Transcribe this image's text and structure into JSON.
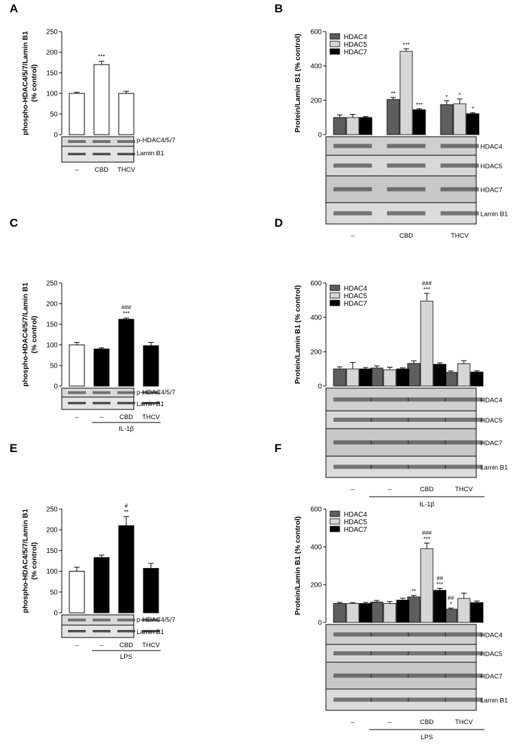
{
  "colors": {
    "white": "#ffffff",
    "black": "#000000",
    "hdac4": "#5e5e5e",
    "hdac5": "#d6d6d6",
    "hdac7": "#000000"
  },
  "chart_data": [
    {
      "panel": "A",
      "type": "bar",
      "ylabel": "phospho-HDAC4/5/7/Lamin B1\n(% control)",
      "ylim": [
        0,
        250
      ],
      "yticks": [
        0,
        50,
        100,
        150,
        200,
        250
      ],
      "categories": [
        "–",
        "CBD",
        "THCV"
      ],
      "values": [
        100,
        170,
        100
      ],
      "errors": [
        3,
        8,
        5
      ],
      "bar_colors": [
        "#ffffff",
        "#ffffff",
        "#ffffff"
      ],
      "annotations": [
        "",
        "***",
        ""
      ],
      "blot_labels": [
        "p-HDAC4/5/7",
        "Lamin B1"
      ],
      "treatment": ""
    },
    {
      "panel": "B",
      "type": "bar",
      "ylabel": "Protein/Lamin B1 (% control)",
      "ylim": [
        0,
        600
      ],
      "yticks": [
        0,
        200,
        400,
        600
      ],
      "categories": [
        "–",
        "CBD",
        "THCV"
      ],
      "legend": [
        "HDAC4",
        "HDAC5",
        "HDAC7"
      ],
      "series": [
        {
          "name": "HDAC4",
          "values": [
            100,
            205,
            175
          ],
          "errors": [
            15,
            12,
            22
          ],
          "annotations": [
            "",
            "**",
            "*"
          ]
        },
        {
          "name": "HDAC5",
          "values": [
            100,
            485,
            180
          ],
          "errors": [
            18,
            15,
            28
          ],
          "annotations": [
            "",
            "***",
            "*"
          ]
        },
        {
          "name": "HDAC7",
          "values": [
            100,
            145,
            122
          ],
          "errors": [
            5,
            6,
            6
          ],
          "annotations": [
            "",
            "***",
            "*"
          ]
        }
      ],
      "blot_labels": [
        "HDAC4",
        "HDAC5",
        "HDAC7",
        "Lamin B1"
      ],
      "treatment": ""
    },
    {
      "panel": "C",
      "type": "bar",
      "ylabel": "phospho-HDAC4/5/7/Lamin B1\n(% control)",
      "ylim": [
        0,
        250
      ],
      "yticks": [
        0,
        50,
        100,
        150,
        200,
        250
      ],
      "categories": [
        "–",
        "–",
        "CBD",
        "THCV"
      ],
      "values": [
        100,
        90,
        162,
        98
      ],
      "errors": [
        6,
        3,
        3,
        8
      ],
      "bar_colors": [
        "#ffffff",
        "#000000",
        "#000000",
        "#000000"
      ],
      "annotations": [
        "",
        "",
        "###\n***",
        ""
      ],
      "blot_labels": [
        "p-HDAC4/5/7",
        "Lamin B1"
      ],
      "treatment": "IL-1β"
    },
    {
      "panel": "D",
      "type": "bar",
      "ylabel": "Protein/Lamin B1 (% control)",
      "ylim": [
        0,
        600
      ],
      "yticks": [
        0,
        200,
        400,
        600
      ],
      "categories": [
        "–",
        "–",
        "CBD",
        "THCV"
      ],
      "legend": [
        "HDAC4",
        "HDAC5",
        "HDAC7"
      ],
      "series": [
        {
          "name": "HDAC4",
          "values": [
            100,
            105,
            132,
            80
          ],
          "errors": [
            12,
            12,
            15,
            8
          ],
          "annotations": [
            "",
            "",
            "",
            ""
          ]
        },
        {
          "name": "HDAC5",
          "values": [
            100,
            95,
            495,
            130
          ],
          "errors": [
            38,
            15,
            45,
            18
          ],
          "annotations": [
            "",
            "",
            "###\n***",
            ""
          ]
        },
        {
          "name": "HDAC7",
          "values": [
            100,
            100,
            127,
            82
          ],
          "errors": [
            8,
            6,
            8,
            7
          ],
          "annotations": [
            "",
            "",
            "",
            ""
          ]
        }
      ],
      "blot_labels": [
        "HDAC4",
        "HDAC5",
        "HDAC7",
        "Lamin B1"
      ],
      "treatment": "IL-1β"
    },
    {
      "panel": "E",
      "type": "bar",
      "ylabel": "phospho-HDAC4/5/7/Lamin B1\n(% control)",
      "ylim": [
        0,
        250
      ],
      "yticks": [
        0,
        50,
        100,
        150,
        200,
        250
      ],
      "categories": [
        "–",
        "–",
        "CBD",
        "THCV"
      ],
      "values": [
        100,
        133,
        210,
        107
      ],
      "errors": [
        10,
        6,
        22,
        12
      ],
      "bar_colors": [
        "#ffffff",
        "#000000",
        "#000000",
        "#000000"
      ],
      "annotations": [
        "",
        "",
        "#\n**",
        ""
      ],
      "blot_labels": [
        "p-HDAC4/5/7",
        "Lamin B1"
      ],
      "treatment": "LPS"
    },
    {
      "panel": "F",
      "type": "bar",
      "ylabel": "Protein/Lamin B1 (% control)",
      "ylim": [
        0,
        600
      ],
      "yticks": [
        0,
        200,
        400,
        600
      ],
      "categories": [
        "–",
        "–",
        "CBD",
        "THCV"
      ],
      "legend": [
        "HDAC4",
        "HDAC5",
        "HDAC7"
      ],
      "series": [
        {
          "name": "HDAC4",
          "values": [
            100,
            108,
            135,
            70
          ],
          "errors": [
            6,
            8,
            8,
            6
          ],
          "annotations": [
            "",
            "",
            "**",
            "##\n*"
          ]
        },
        {
          "name": "HDAC5",
          "values": [
            100,
            100,
            390,
            127
          ],
          "errors": [
            5,
            10,
            30,
            28
          ],
          "annotations": [
            "",
            "",
            "###\n***",
            ""
          ]
        },
        {
          "name": "HDAC7",
          "values": [
            100,
            118,
            170,
            105
          ],
          "errors": [
            6,
            10,
            10,
            8
          ],
          "annotations": [
            "",
            "",
            "##\n***",
            ""
          ]
        }
      ],
      "blot_labels": [
        "HDAC4",
        "HDAC5",
        "HDAC7",
        "Lamin B1"
      ],
      "treatment": "LPS"
    }
  ]
}
